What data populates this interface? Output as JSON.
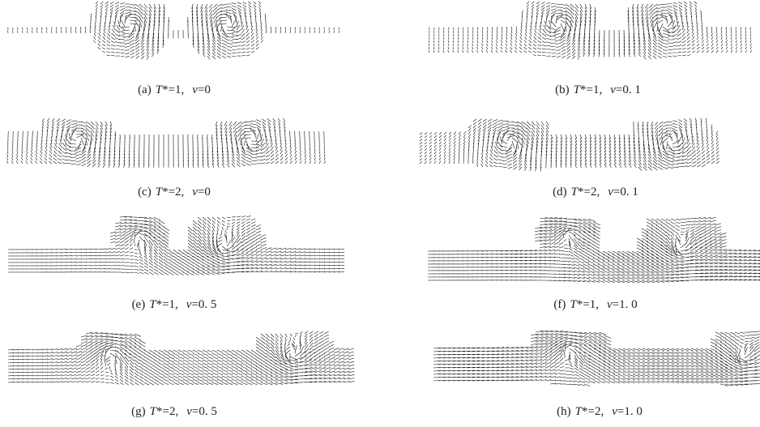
{
  "panels": [
    {
      "label": "(a)",
      "t": "T",
      "t_rest": "*=1,",
      "v": "v",
      "v_rest": "=0"
    },
    {
      "label": "(b)",
      "t": "T",
      "t_rest": "*=1,",
      "v": "v",
      "v_rest": "=0. 1"
    },
    {
      "label": "(c)",
      "t": "T",
      "t_rest": "*=2,",
      "v": "v",
      "v_rest": "=0"
    },
    {
      "label": "(d)",
      "t": "T",
      "t_rest": "*=2,",
      "v": "v",
      "v_rest": "=0. 1"
    },
    {
      "label": "(e)",
      "t": "T",
      "t_rest": "*=1,",
      "v": "v",
      "v_rest": "=0. 5"
    },
    {
      "label": "(f)",
      "t": "T",
      "t_rest": "*=1,",
      "v": "v",
      "v_rest": "=1. 0"
    },
    {
      "label": "(g)",
      "t": "T",
      "t_rest": "*=2,",
      "v": "v",
      "v_rest": "=0. 5"
    },
    {
      "label": "(h)",
      "t": "T",
      "t_rest": "*=2,",
      "v": "v",
      "v_rest": "=1. 0"
    }
  ]
}
